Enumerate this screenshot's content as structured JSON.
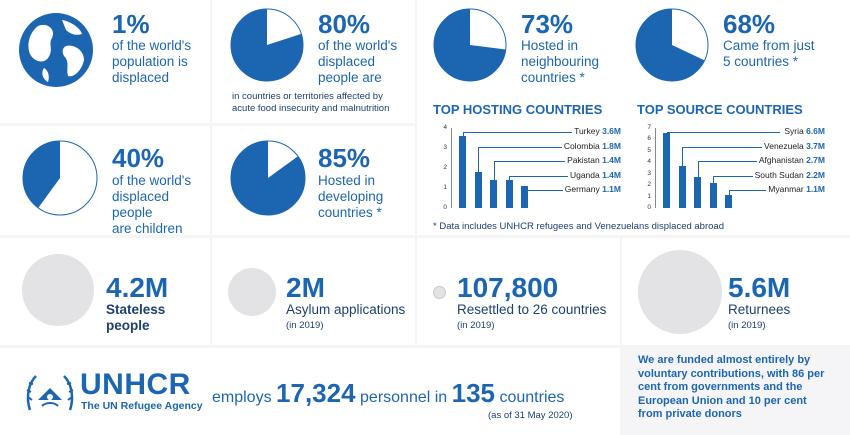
{
  "stats": {
    "s1": {
      "value": "1%",
      "desc_lines": [
        "of the world's",
        "population is",
        "displaced"
      ],
      "fraction": 0.01
    },
    "s2": {
      "value": "80%",
      "desc_lines": [
        "of the world's",
        "displaced",
        "people are"
      ],
      "extra_lines": [
        "in countries or territories affected by",
        "acute food insecurity and malnutrition"
      ],
      "fraction": 0.8
    },
    "s3": {
      "value": "73%",
      "desc_lines": [
        "Hosted in",
        "neighbouring",
        "countries *"
      ],
      "fraction": 0.73
    },
    "s4": {
      "value": "68%",
      "desc_lines": [
        "Came from just",
        "5 countries *"
      ],
      "fraction": 0.68
    },
    "s5": {
      "value": "40%",
      "desc_lines": [
        "of the world's",
        "displaced people",
        "are children"
      ],
      "fraction": 0.4
    },
    "s6": {
      "value": "85%",
      "desc_lines": [
        "Hosted in",
        "developing",
        "countries *"
      ],
      "fraction": 0.85
    }
  },
  "chart_data": [
    {
      "type": "bar",
      "title": "TOP HOSTING COUNTRIES",
      "categories": [
        "Turkey",
        "Colombia",
        "Pakistan",
        "Uganda",
        "Germany"
      ],
      "values": [
        3.6,
        1.8,
        1.4,
        1.4,
        1.1
      ],
      "value_labels": [
        "3.6M",
        "1.8M",
        "1.4M",
        "1.4M",
        "1.1M"
      ],
      "yticks": [
        "4",
        "3",
        "2",
        "1",
        "0"
      ],
      "ylim": [
        0,
        4
      ]
    },
    {
      "type": "bar",
      "title": "TOP SOURCE COUNTRIES",
      "categories": [
        "Syria",
        "Venezuela",
        "Afghanistan",
        "South Sudan",
        "Myanmar"
      ],
      "values": [
        6.6,
        3.7,
        2.7,
        2.2,
        1.1
      ],
      "value_labels": [
        "6.6M",
        "3.7M",
        "2.7M",
        "2.2M",
        "1.1M"
      ],
      "yticks": [
        "7",
        "6",
        "5",
        "4",
        "3",
        "2",
        "1",
        "0"
      ],
      "ylim": [
        0,
        7
      ]
    }
  ],
  "footnote": "* Data includes UNHCR refugees and Venezuelans displaced abroad",
  "bubbles": {
    "b1": {
      "value": "4.2M",
      "label": "Stateless people",
      "sub": ""
    },
    "b2": {
      "value": "2M",
      "label": "Asylum applications",
      "sub": "(in 2019)"
    },
    "b3": {
      "value": "107,800",
      "label": "Resettled to 26 countries",
      "sub": "(in 2019)"
    },
    "b4": {
      "value": "5.6M",
      "label": "Returnees",
      "sub": "(in 2019)"
    }
  },
  "unhcr": {
    "logo_text": "UNHCR",
    "agency": "The UN Refugee Agency",
    "employs": "employs",
    "personnel_count": "17,324",
    "personnel_in": "personnel in",
    "countries_count": "135",
    "countries_word": "countries",
    "as_of": "(as of 31 May 2020)"
  },
  "funding_lines": [
    "We are funded almost entirely by",
    "voluntary contributions, with 86 per",
    "cent from governments and the",
    "European Union and 10 per cent",
    "from private donors"
  ],
  "colors": {
    "accent": "#1c66b1",
    "circle_grey": "#e3e3e6",
    "background": "#f5f5f7"
  }
}
